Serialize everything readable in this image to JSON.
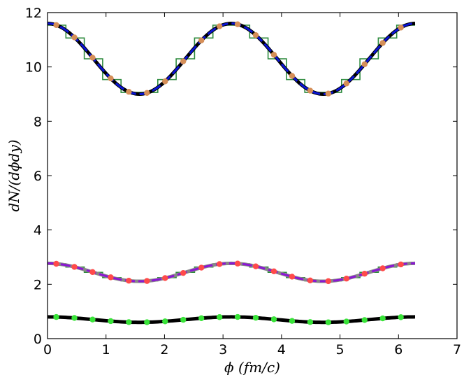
{
  "chart_data": {
    "type": "line",
    "title": "",
    "xlabel": "ϕ (fm/c)",
    "ylabel": "dN/(dϕdy)",
    "xlim": [
      0,
      7
    ],
    "ylim": [
      0,
      12
    ],
    "x_ticks": [
      "0",
      "1",
      "2",
      "3",
      "4",
      "5",
      "6",
      "7"
    ],
    "y_ticks": [
      "0",
      "2",
      "4",
      "6",
      "8",
      "10",
      "12"
    ],
    "grid": false,
    "legend": "none",
    "groups": [
      {
        "mean": 10.3,
        "amplitude": 1.3,
        "curve_colors": [
          "#000000",
          "#0a14d6"
        ],
        "step_color": "#2e8b3e",
        "marker_color": "#d68f58",
        "x_markers": [
          0.15,
          0.46,
          0.77,
          1.08,
          1.39,
          1.7,
          2.01,
          2.32,
          2.63,
          2.94,
          3.25,
          3.56,
          3.87,
          4.18,
          4.49,
          4.8,
          5.11,
          5.42,
          5.73,
          6.04
        ]
      },
      {
        "mean": 2.44,
        "amplitude": 0.33,
        "curve_colors": [
          "#888888",
          "#8a17d4"
        ],
        "step_color": "#2e8b3e",
        "marker_color": "#ff4a4a",
        "x_markers": [
          0.15,
          0.46,
          0.77,
          1.08,
          1.39,
          1.7,
          2.01,
          2.32,
          2.63,
          2.94,
          3.25,
          3.56,
          3.87,
          4.18,
          4.49,
          4.8,
          5.11,
          5.42,
          5.73,
          6.04
        ]
      },
      {
        "mean": 0.7,
        "amplitude": 0.1,
        "curve_colors": [
          "#000000",
          "#000000"
        ],
        "step_color": "#2e8b3e",
        "marker_color": "#39e339",
        "x_markers": [
          0.15,
          0.46,
          0.77,
          1.08,
          1.39,
          1.7,
          2.01,
          2.32,
          2.63,
          2.94,
          3.25,
          3.56,
          3.87,
          4.18,
          4.49,
          4.8,
          5.11,
          5.42,
          5.73,
          6.04
        ]
      }
    ]
  }
}
